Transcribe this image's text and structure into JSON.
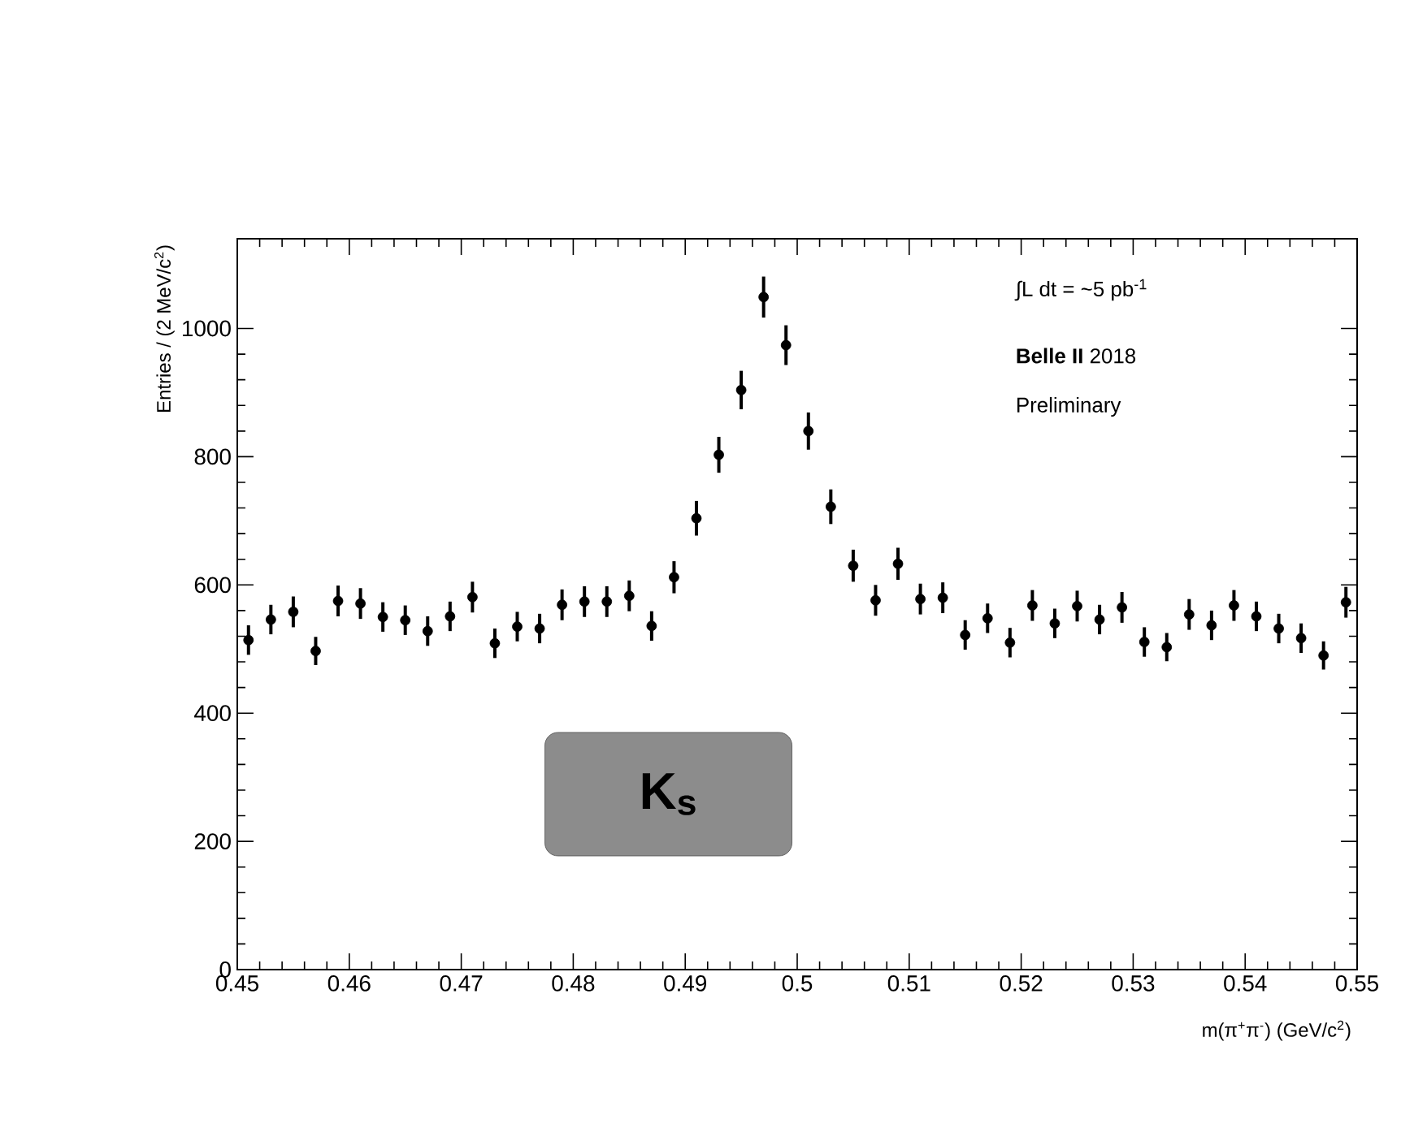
{
  "chart_data": {
    "type": "scatter",
    "xlabel": "m(π$^{+}$π$^{-}$) (GeV/c$^{2}$)",
    "ylabel": "Entries / (2 MeV/c$^{2}$)",
    "annotations": [
      "∫L dt = ~5 pb$^{-1}$",
      "**Belle II** 2018",
      "Preliminary",
      "K$_{s}$"
    ],
    "x": [
      0.451,
      0.453,
      0.455,
      0.457,
      0.459,
      0.461,
      0.463,
      0.465,
      0.467,
      0.469,
      0.471,
      0.473,
      0.475,
      0.477,
      0.479,
      0.481,
      0.483,
      0.485,
      0.487,
      0.489,
      0.491,
      0.493,
      0.495,
      0.497,
      0.499,
      0.501,
      0.503,
      0.505,
      0.507,
      0.509,
      0.511,
      0.513,
      0.515,
      0.517,
      0.519,
      0.521,
      0.523,
      0.525,
      0.527,
      0.529,
      0.531,
      0.533,
      0.535,
      0.537,
      0.539,
      0.541,
      0.543,
      0.545,
      0.547,
      0.549
    ],
    "values": [
      514,
      546,
      558,
      497,
      575,
      571,
      550,
      545,
      528,
      551,
      581,
      509,
      535,
      532,
      569,
      574,
      574,
      583,
      536,
      612,
      704,
      803,
      904,
      1049,
      974,
      840,
      722,
      630,
      576,
      633,
      578,
      580,
      522,
      548,
      510,
      568,
      540,
      567,
      546,
      565,
      511,
      503,
      554,
      537,
      568,
      551,
      532,
      517,
      490,
      573
    ],
    "errors": [
      23,
      23,
      24,
      22,
      24,
      24,
      23,
      23,
      23,
      23,
      24,
      23,
      23,
      23,
      24,
      24,
      24,
      24,
      23,
      25,
      27,
      28,
      30,
      32,
      31,
      29,
      27,
      25,
      24,
      25,
      24,
      24,
      23,
      23,
      23,
      24,
      23,
      24,
      23,
      24,
      23,
      22,
      24,
      23,
      24,
      23,
      23,
      23,
      22,
      24
    ],
    "color": "#000000",
    "marker": "circle",
    "grid": false,
    "xlim": [
      0.45,
      0.55
    ],
    "ylim": [
      0,
      1140
    ],
    "xticks": [
      0.45,
      0.46,
      0.47,
      0.48,
      0.49,
      0.5,
      0.51,
      0.52,
      0.53,
      0.54,
      0.55
    ],
    "yticks": [
      0,
      200,
      400,
      600,
      800,
      1000
    ]
  }
}
